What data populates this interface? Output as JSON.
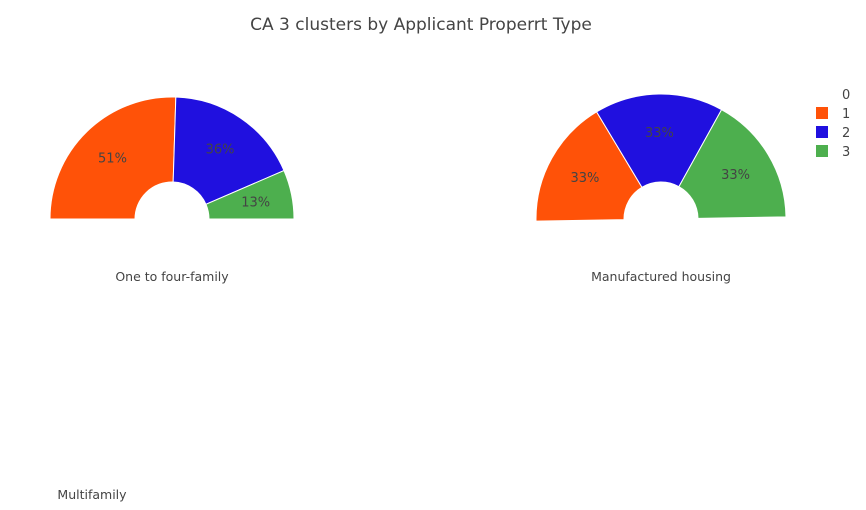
{
  "chart_data": {
    "type": "pie",
    "title": "CA 3 clusters by Applicant Properrt Type",
    "legend": {
      "placement": "top-right",
      "entries": [
        {
          "name": "0",
          "color": null
        },
        {
          "name": "1",
          "color": "#ff5208"
        },
        {
          "name": "2",
          "color": "#2010df"
        },
        {
          "name": "3",
          "color": "#4daf4e"
        }
      ]
    },
    "charts": [
      {
        "subtitle": "One to four-family",
        "slices": [
          {
            "label": "1",
            "value": 51,
            "text": "51%",
            "color": "#ff5208"
          },
          {
            "label": "2",
            "value": 36,
            "text": "36%",
            "color": "#2010df"
          },
          {
            "label": "3",
            "value": 13,
            "text": "13%",
            "color": "#4daf4e"
          }
        ]
      },
      {
        "subtitle": "Manufactured housing",
        "slices": [
          {
            "label": "1",
            "value": 33.33,
            "text": "33%",
            "color": "#ff5208"
          },
          {
            "label": "2",
            "value": 33.33,
            "text": "33%",
            "color": "#2010df"
          },
          {
            "label": "3",
            "value": 33.33,
            "text": "33%",
            "color": "#4daf4e"
          }
        ]
      },
      {
        "subtitle": "Multifamily",
        "slices": []
      }
    ]
  }
}
